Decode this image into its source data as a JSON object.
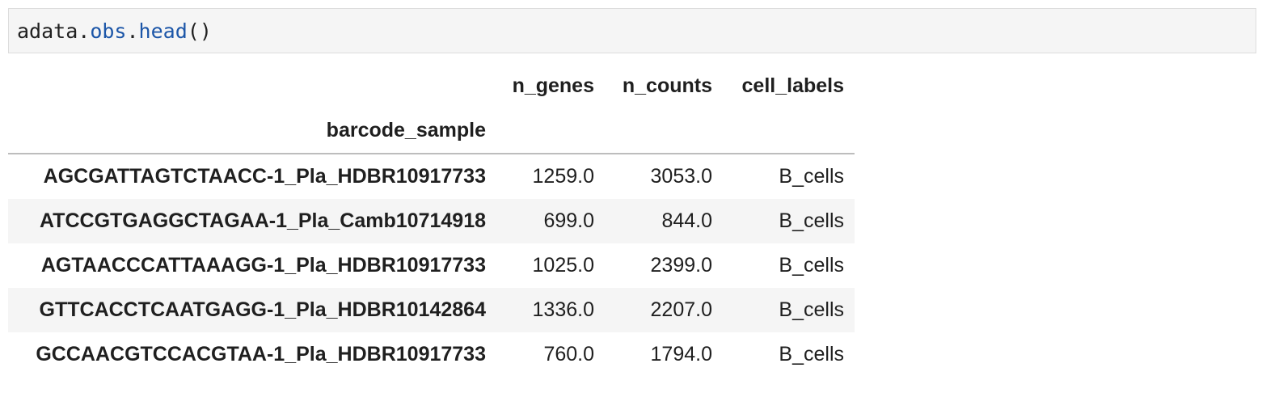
{
  "code_cell": {
    "object": "adata",
    "dot1": ".",
    "attribute": "obs",
    "dot2": ".",
    "method": "head",
    "call": "()"
  },
  "table": {
    "columns": [
      "n_genes",
      "n_counts",
      "cell_labels"
    ],
    "index_name": "barcode_sample",
    "rows": [
      {
        "index": "AGCGATTAGTCTAACC-1_Pla_HDBR10917733",
        "n_genes": "1259.0",
        "n_counts": "3053.0",
        "cell_labels": "B_cells"
      },
      {
        "index": "ATCCGTGAGGCTAGAA-1_Pla_Camb10714918",
        "n_genes": "699.0",
        "n_counts": "844.0",
        "cell_labels": "B_cells"
      },
      {
        "index": "AGTAACCCATTAAAGG-1_Pla_HDBR10917733",
        "n_genes": "1025.0",
        "n_counts": "2399.0",
        "cell_labels": "B_cells"
      },
      {
        "index": "GTTCACCTCAATGAGG-1_Pla_HDBR10142864",
        "n_genes": "1336.0",
        "n_counts": "2207.0",
        "cell_labels": "B_cells"
      },
      {
        "index": "GCCAACGTCCACGTAA-1_Pla_HDBR10917733",
        "n_genes": "760.0",
        "n_counts": "1794.0",
        "cell_labels": "B_cells"
      }
    ]
  }
}
